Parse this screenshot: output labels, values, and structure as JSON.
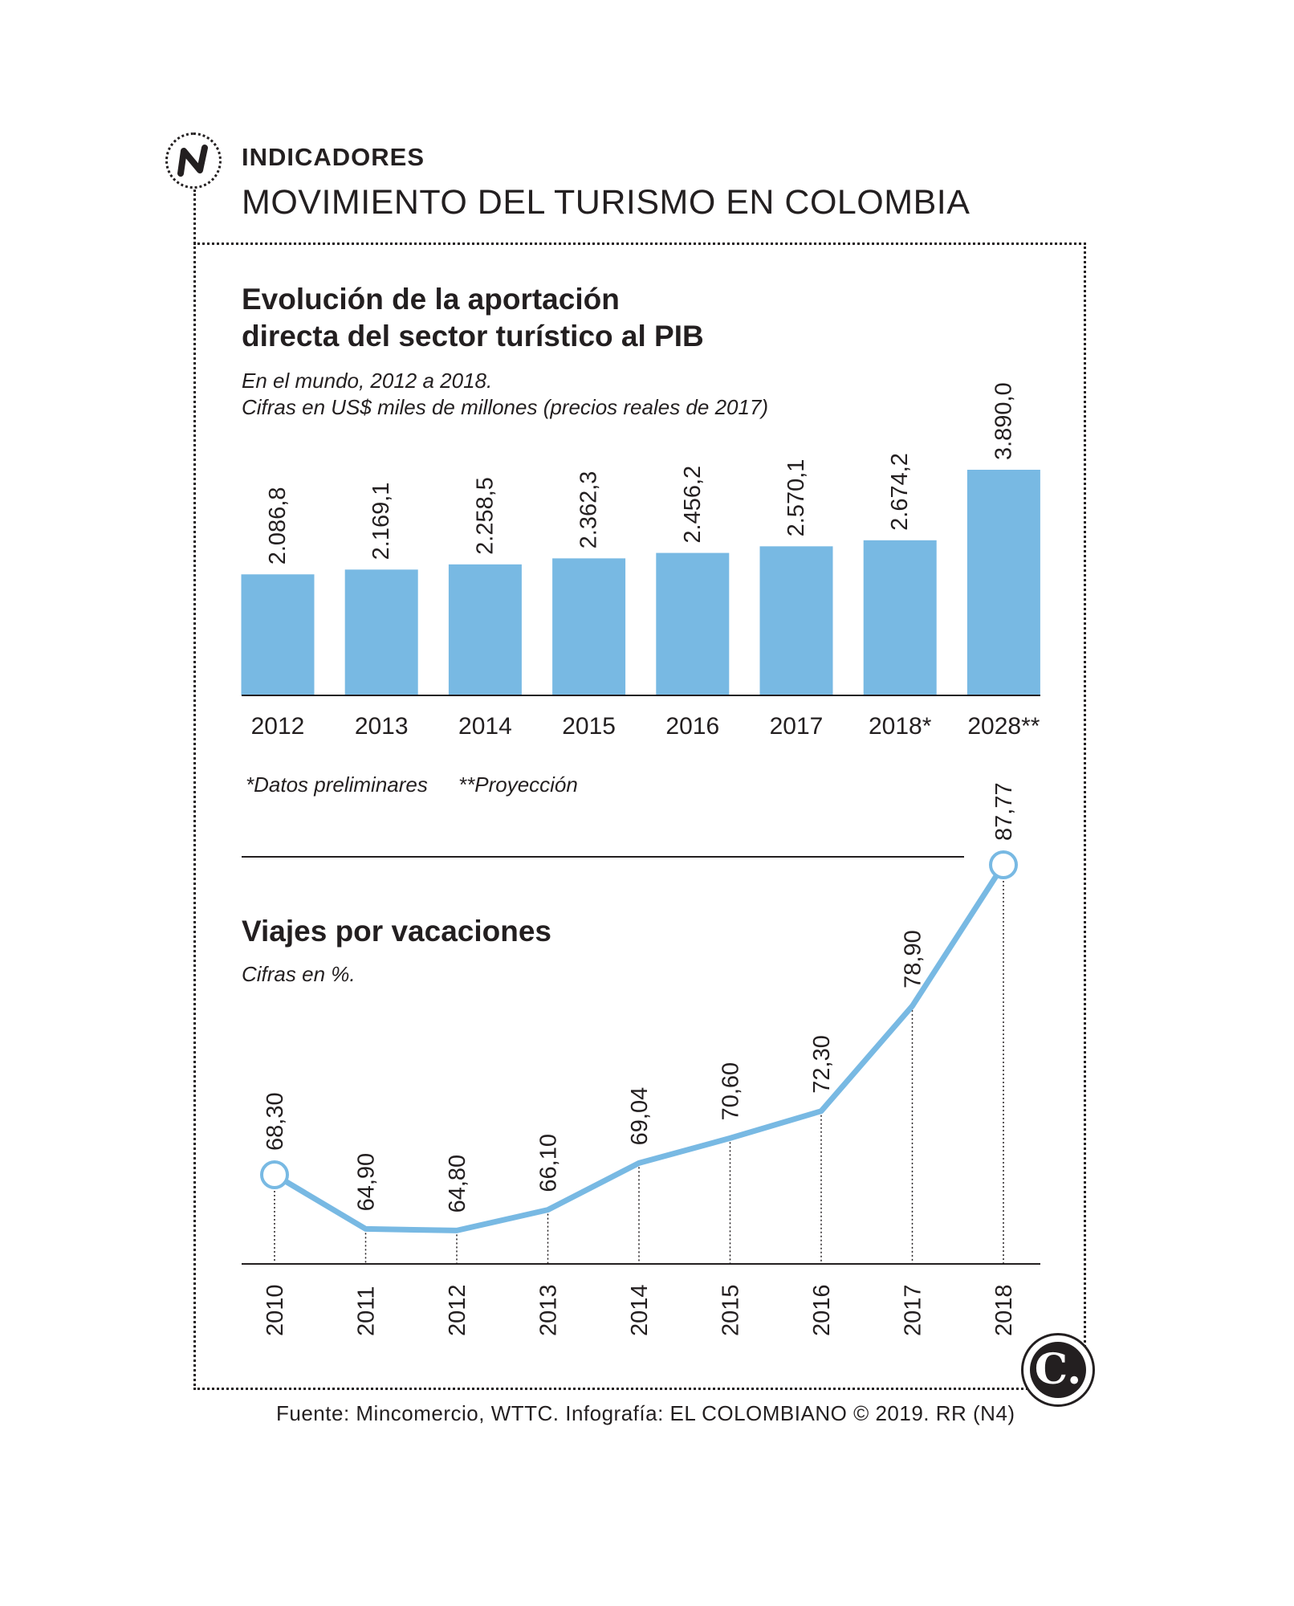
{
  "header": {
    "kicker": "INDICADORES",
    "title": "MOVIMIENTO DEL TURISMO EN COLOMBIA"
  },
  "section1": {
    "title_line1": "Evolución de la aportación",
    "title_line2": "directa del sector turístico al PIB",
    "subtitle_line1": "En el mundo, 2012 a 2018.",
    "subtitle_line2": "Cifras en US$ miles de millones (precios reales de 2017)",
    "note1": "*Datos preliminares",
    "note2": "**Proyección"
  },
  "section2": {
    "title": "Viajes por vacaciones",
    "subtitle": "Cifras en %."
  },
  "source": "Fuente: Mincomercio, WTTC. Infografía: EL COLOMBIANO © 2019. RR (N4)",
  "brand_letter": "C.",
  "colors": {
    "bar": "#78b9e3",
    "line": "#78b9e3",
    "text": "#231f20"
  },
  "chart_data": [
    {
      "type": "bar",
      "title": "Evolución de la aportación directa del sector turístico al PIB",
      "subtitle": "En el mundo, 2012 a 2018. Cifras en US$ miles de millones (precios reales de 2017)",
      "categories": [
        "2012",
        "2013",
        "2014",
        "2015",
        "2016",
        "2017",
        "2018*",
        "2028**"
      ],
      "values": [
        2086.8,
        2169.1,
        2258.5,
        2362.3,
        2456.2,
        2570.1,
        2674.2,
        3890.0
      ],
      "value_labels": [
        "2.086,8",
        "2.169,1",
        "2.258,5",
        "2.362,3",
        "2.456,2",
        "2.570,1",
        "2.674,2",
        "3.890,0"
      ],
      "ylim": [
        0,
        3890
      ],
      "grid": false,
      "legend": "none"
    },
    {
      "type": "line",
      "title": "Viajes por vacaciones",
      "subtitle": "Cifras en %.",
      "x": [
        "2010",
        "2011",
        "2012",
        "2013",
        "2014",
        "2015",
        "2016",
        "2017",
        "2018"
      ],
      "values": [
        68.3,
        64.9,
        64.8,
        66.1,
        69.04,
        70.6,
        72.3,
        78.9,
        87.77
      ],
      "value_labels": [
        "68,30",
        "64,90",
        "64,80",
        "66,10",
        "69,04",
        "70,60",
        "72,30",
        "78,90",
        "87,77"
      ],
      "ylim": [
        61.6,
        87.77
      ],
      "grid": false,
      "legend": "none"
    }
  ]
}
